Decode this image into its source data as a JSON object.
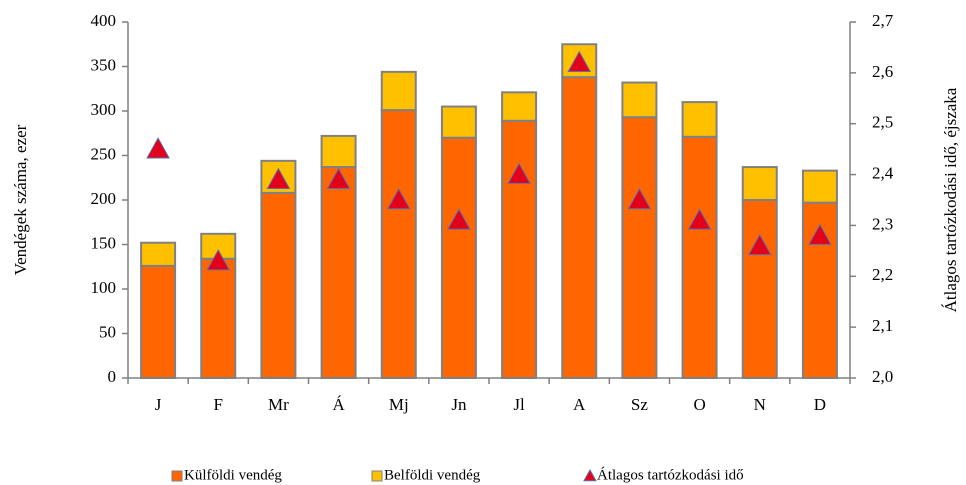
{
  "chart_data": {
    "type": "bar",
    "stacked": true,
    "categories": [
      "J",
      "F",
      "Mr",
      "Á",
      "Mj",
      "Jn",
      "Jl",
      "A",
      "Sz",
      "O",
      "N",
      "D"
    ],
    "series": [
      {
        "name": "Külföldi vendég",
        "color": "#ff6600",
        "values": [
          126,
          134,
          208,
          237,
          301,
          270,
          289,
          338,
          293,
          271,
          200,
          197
        ]
      },
      {
        "name": "Belföldi vendég",
        "color": "#ffc000",
        "values": [
          26,
          28,
          36,
          35,
          43,
          35,
          32,
          37,
          39,
          39,
          37,
          36
        ]
      },
      {
        "name": "Átlagos tartózkodási idő",
        "type": "scatter",
        "axis": "y2",
        "color": "#e3001b",
        "values": [
          2.45,
          2.23,
          2.39,
          2.39,
          2.35,
          2.31,
          2.4,
          2.62,
          2.35,
          2.31,
          2.26,
          2.28
        ]
      }
    ],
    "ylabel": "Vendégek száma, ezer",
    "y2label": "Átlagos tartózkodási idő, éjszaka",
    "ylim": [
      0,
      400
    ],
    "yticks": [
      0,
      50,
      100,
      150,
      200,
      250,
      300,
      350,
      400
    ],
    "y2lim": [
      2.0,
      2.7
    ],
    "y2ticks": [
      {
        "value": 2.0,
        "label": "2,0"
      },
      {
        "value": 2.1,
        "label": "2,1"
      },
      {
        "value": 2.2,
        "label": "2,2"
      },
      {
        "value": 2.3,
        "label": "2,3"
      },
      {
        "value": 2.4,
        "label": "2,4"
      },
      {
        "value": 2.5,
        "label": "2,5"
      },
      {
        "value": 2.6,
        "label": "2,6"
      },
      {
        "value": 2.7,
        "label": "2,7"
      }
    ],
    "legend": "bottom",
    "grid": false
  }
}
